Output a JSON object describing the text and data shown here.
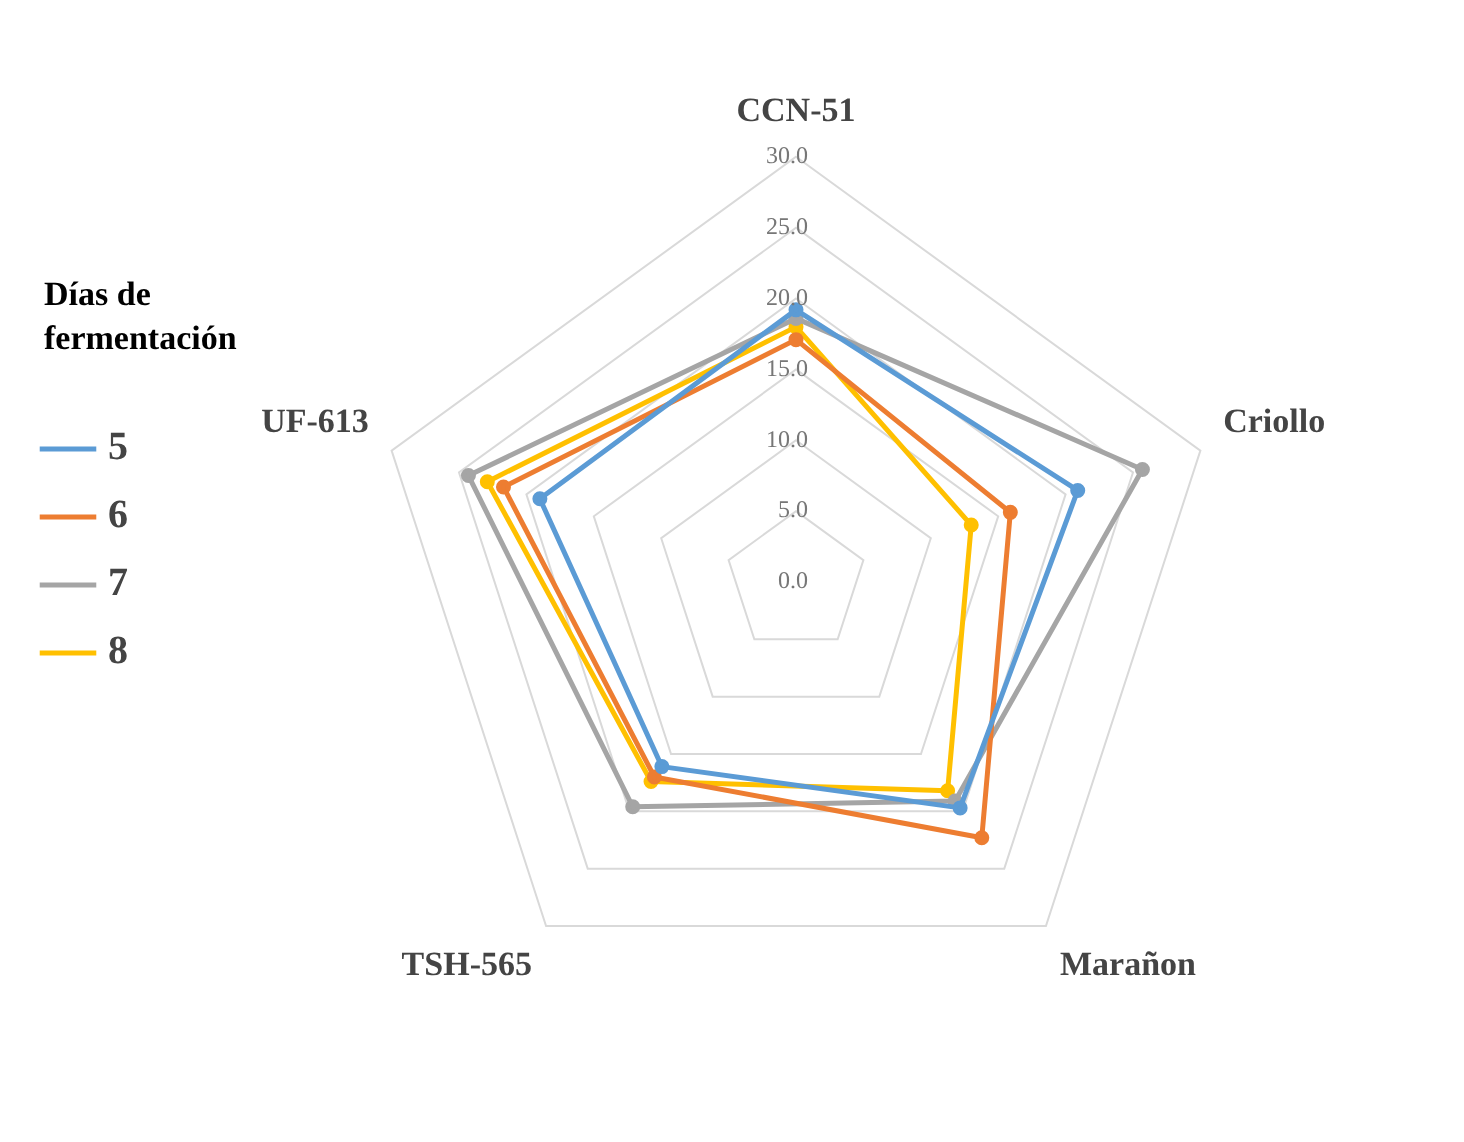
{
  "chart_data": {
    "type": "radar",
    "legend_title": "Días de fermentación",
    "legend": "left",
    "grid": true,
    "marker": "circle",
    "line_style": "solid",
    "categories": [
      "CCN-51",
      "Criollo",
      "Marañon",
      "TSH-565",
      "UF-613"
    ],
    "ylim": [
      0,
      30
    ],
    "yticks": [
      {
        "value": 0,
        "label": "0.0"
      },
      {
        "value": 5,
        "label": "5.0"
      },
      {
        "value": 10,
        "label": "10.0"
      },
      {
        "value": 15,
        "label": "15.0"
      },
      {
        "value": 20,
        "label": "20.0"
      },
      {
        "value": 25,
        "label": "25.0"
      },
      {
        "value": 30,
        "label": "30.0"
      }
    ],
    "series": [
      {
        "name": "5",
        "color": "#5b9bd5",
        "values": [
          19.2,
          20.9,
          19.7,
          16.1,
          19.0
        ]
      },
      {
        "name": "6",
        "color": "#ed7d31",
        "values": [
          17.1,
          15.9,
          22.3,
          17.0,
          21.7
        ]
      },
      {
        "name": "7",
        "color": "#a5a5a5",
        "values": [
          18.6,
          25.7,
          19.1,
          19.6,
          24.3
        ]
      },
      {
        "name": "8",
        "color": "#ffc000",
        "values": [
          18.0,
          13.0,
          18.2,
          17.4,
          22.9
        ]
      }
    ]
  }
}
